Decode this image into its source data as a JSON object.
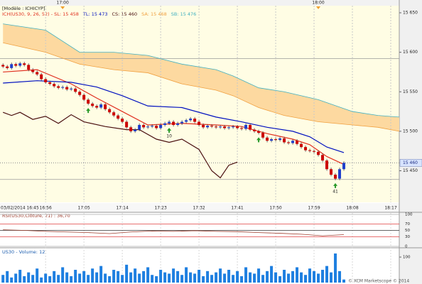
{
  "chart_data": {
    "type": "candlestick",
    "model_label": "[Modèle : ICHICYP]",
    "indicator_title": "ICH(US30, 9, 26, 52) - ",
    "top_markers": [
      {
        "value": 1020,
        "label": "17:00"
      },
      {
        "value": 1080,
        "label": "18:00"
      }
    ],
    "xlim": [
      1005.3,
      1099
    ],
    "xticks": [
      {
        "value": 1005,
        "label": "03/02/2014 16:45"
      },
      {
        "value": 1016,
        "label": "16:56"
      },
      {
        "value": 1025,
        "label": "17:05"
      },
      {
        "value": 1034,
        "label": "17:14"
      },
      {
        "value": 1043,
        "label": "17:23"
      },
      {
        "value": 1052,
        "label": "17:32"
      },
      {
        "value": 1061,
        "label": "17:41"
      },
      {
        "value": 1070,
        "label": "17:50"
      },
      {
        "value": 1079,
        "label": "17:59"
      },
      {
        "value": 1088,
        "label": "18:08"
      },
      {
        "value": 1097,
        "label": "18:17"
      }
    ],
    "ylim": [
      15410,
      15659
    ],
    "yticks": [
      {
        "value": 15650,
        "label": "15 650"
      },
      {
        "value": 15600,
        "label": "15 600"
      },
      {
        "value": 15550,
        "label": "15 550"
      },
      {
        "value": 15500,
        "label": "15 500"
      },
      {
        "value": 15450,
        "label": "15 450"
      }
    ],
    "hlines": [
      15592,
      15439
    ],
    "price_label": {
      "value": 15460,
      "label": "15 460"
    },
    "bull_color": "#1f3fcc",
    "bear_color": "#cc0000",
    "cloud_color": "#fdd9a0",
    "candles": {
      "x": [
        1006,
        1007,
        1008,
        1009,
        1010,
        1011,
        1012,
        1013,
        1014,
        1015,
        1016,
        1017,
        1018,
        1019,
        1020,
        1021,
        1022,
        1023,
        1024,
        1025,
        1026,
        1027,
        1028,
        1029,
        1030,
        1031,
        1032,
        1033,
        1034,
        1035,
        1036,
        1037,
        1038,
        1039,
        1040,
        1041,
        1042,
        1043,
        1044,
        1045,
        1046,
        1047,
        1048,
        1049,
        1050,
        1051,
        1052,
        1053,
        1054,
        1055,
        1056,
        1057,
        1058,
        1059,
        1060,
        1061,
        1062,
        1063,
        1064,
        1065,
        1066,
        1067,
        1068,
        1069,
        1070,
        1071,
        1072,
        1073,
        1074,
        1075,
        1076,
        1077,
        1078,
        1079,
        1080,
        1081,
        1082,
        1083,
        1084,
        1085,
        1086
      ],
      "open": [
        15584,
        15582,
        15580,
        15585,
        15583,
        15586,
        15584,
        15578,
        15575,
        15572,
        15566,
        15562,
        15560,
        15557,
        15555,
        15556,
        15553,
        15554,
        15550,
        15546,
        15540,
        15535,
        15532,
        15530,
        15534,
        15528,
        15524,
        15520,
        15516,
        15512,
        15505,
        15500,
        15502,
        15508,
        15505,
        15506,
        15507,
        15504,
        15508,
        15510,
        15512,
        15508,
        15510,
        15512,
        15514,
        15516,
        15512,
        15508,
        15505,
        15507,
        15506,
        15505,
        15506,
        15504,
        15505,
        15506,
        15504,
        15503,
        15508,
        15502,
        15500,
        15498,
        15492,
        15488,
        15490,
        15489,
        15491,
        15486,
        15485,
        15488,
        15484,
        15480,
        15476,
        15475,
        15474,
        15470,
        15463,
        15452,
        15445,
        15440,
        15452
      ],
      "high": [
        15586,
        15584,
        15587,
        15587,
        15588,
        15588,
        15586,
        15580,
        15577,
        15574,
        15568,
        15564,
        15562,
        15559,
        15558,
        15558,
        15556,
        15556,
        15552,
        15548,
        15542,
        15537,
        15534,
        15536,
        15536,
        15530,
        15526,
        15522,
        15518,
        15514,
        15507,
        15504,
        15510,
        15510,
        15508,
        15509,
        15509,
        15510,
        15512,
        15514,
        15514,
        15512,
        15514,
        15516,
        15518,
        15518,
        15514,
        15510,
        15509,
        15509,
        15508,
        15508,
        15508,
        15507,
        15508,
        15508,
        15506,
        15510,
        15510,
        15504,
        15502,
        15500,
        15494,
        15492,
        15492,
        15493,
        15493,
        15488,
        15490,
        15490,
        15486,
        15482,
        15478,
        15477,
        15476,
        15472,
        15465,
        15454,
        15447,
        15454,
        15462
      ],
      "low": [
        15580,
        15578,
        15578,
        15581,
        15581,
        15582,
        15576,
        15573,
        15570,
        15564,
        15560,
        15558,
        15555,
        15553,
        15553,
        15551,
        15551,
        15548,
        15544,
        15538,
        15533,
        15530,
        15528,
        15528,
        15526,
        15522,
        15518,
        15514,
        15510,
        15503,
        15498,
        15498,
        15500,
        15503,
        15503,
        15504,
        15502,
        15502,
        15506,
        15508,
        15506,
        15506,
        15508,
        15510,
        15512,
        15510,
        15506,
        15503,
        15503,
        15504,
        15503,
        15503,
        15502,
        15502,
        15503,
        15502,
        15501,
        15501,
        15500,
        15498,
        15496,
        15490,
        15486,
        15486,
        15487,
        15487,
        15484,
        15483,
        15483,
        15482,
        15478,
        15474,
        15473,
        15472,
        15468,
        15461,
        15450,
        15443,
        15438,
        15438,
        15450
      ],
      "close": [
        15582,
        15580,
        15585,
        15583,
        15586,
        15584,
        15578,
        15575,
        15572,
        15566,
        15562,
        15560,
        15557,
        15555,
        15556,
        15553,
        15554,
        15550,
        15546,
        15540,
        15535,
        15532,
        15530,
        15534,
        15528,
        15524,
        15520,
        15516,
        15512,
        15505,
        15500,
        15502,
        15508,
        15505,
        15506,
        15507,
        15504,
        15508,
        15510,
        15512,
        15508,
        15510,
        15512,
        15514,
        15516,
        15512,
        15508,
        15505,
        15507,
        15506,
        15505,
        15506,
        15504,
        15505,
        15506,
        15504,
        15503,
        15508,
        15502,
        15500,
        15498,
        15492,
        15488,
        15490,
        15489,
        15491,
        15486,
        15485,
        15488,
        15484,
        15480,
        15476,
        15475,
        15474,
        15470,
        15463,
        15452,
        15445,
        15440,
        15452,
        15460
      ]
    },
    "series": [
      {
        "name": "SL: 15 458",
        "color": "#e03020",
        "x": [
          1006,
          1014,
          1022,
          1028,
          1034,
          1040,
          1048,
          1056,
          1062,
          1068,
          1074,
          1078,
          1082,
          1086
        ],
        "values": [
          15575,
          15578,
          15560,
          15542,
          15525,
          15508,
          15510,
          15508,
          15506,
          15497,
          15490,
          15483,
          15468,
          15458
        ]
      },
      {
        "name": "TL: 15 473",
        "color": "#0010c0",
        "x": [
          1006,
          1014,
          1022,
          1028,
          1034,
          1040,
          1048,
          1056,
          1062,
          1068,
          1074,
          1078,
          1082,
          1086
        ],
        "values": [
          15561,
          15564,
          15562,
          15556,
          15545,
          15532,
          15530,
          15518,
          15512,
          15505,
          15500,
          15493,
          15480,
          15473
        ]
      },
      {
        "name": "CS: 15 460",
        "color": "#4a1010",
        "x": [
          1006,
          1008,
          1010,
          1013,
          1016,
          1019,
          1022,
          1025,
          1030,
          1035,
          1038,
          1042,
          1045,
          1048,
          1052,
          1055,
          1057,
          1059,
          1061
        ],
        "values": [
          15524,
          15520,
          15524,
          15515,
          15519,
          15510,
          15521,
          15512,
          15506,
          15502,
          15502,
          15490,
          15486,
          15490,
          15477,
          15450,
          15441,
          15457,
          15461
        ]
      },
      {
        "name": "SA: 15 468",
        "color": "#f0a040",
        "x": [
          1006,
          1016,
          1024,
          1032,
          1040,
          1048,
          1056,
          1060,
          1066,
          1072,
          1080,
          1088,
          1094,
          1099
        ],
        "values": [
          15612,
          15600,
          15585,
          15578,
          15574,
          15560,
          15552,
          15545,
          15530,
          15520,
          15512,
          15508,
          15505,
          15500
        ]
      },
      {
        "name": "SB: 15 476",
        "color": "#40b0c0",
        "x": [
          1006,
          1016,
          1024,
          1032,
          1040,
          1048,
          1056,
          1060,
          1066,
          1072,
          1080,
          1088,
          1094,
          1099
        ],
        "values": [
          15636,
          15628,
          15600,
          15600,
          15596,
          15585,
          15578,
          15570,
          15555,
          15550,
          15540,
          15525,
          15520,
          15518
        ]
      }
    ],
    "signals": {
      "x": [
        1026,
        1045,
        1066,
        1084
      ],
      "labels": [
        null,
        "10",
        null,
        "41"
      ],
      "color": "#2a9a2a"
    },
    "rsi": {
      "title": "RSI(US30,Clôture, 21) : 36,70",
      "color": "#a04030",
      "ylim": [
        0,
        100
      ],
      "yticks": [
        100,
        70,
        50,
        30,
        0
      ],
      "grid_colors": [
        "#aaaaaa",
        "#e04040",
        "#333333",
        "#e04040",
        "#aaaaaa"
      ],
      "x": [
        1006,
        1011,
        1016,
        1021,
        1026,
        1031,
        1036,
        1041,
        1046,
        1051,
        1056,
        1061,
        1066,
        1071,
        1076,
        1081,
        1086
      ],
      "values": [
        52,
        50,
        47,
        45,
        43,
        40,
        45,
        48,
        47,
        49,
        47,
        46,
        43,
        41,
        38,
        33,
        36.7
      ]
    },
    "volume": {
      "title": "US30 - Volume: 12",
      "color": "#1e7fe0",
      "ylim": [
        0,
        128
      ],
      "yticks": [
        100
      ],
      "values": [
        30,
        45,
        20,
        35,
        50,
        25,
        40,
        30,
        55,
        20,
        35,
        25,
        45,
        30,
        60,
        40,
        25,
        50,
        35,
        45,
        30,
        55,
        40,
        65,
        35,
        25,
        50,
        45,
        30,
        70,
        40,
        55,
        35,
        45,
        60,
        30,
        25,
        50,
        40,
        35,
        55,
        45,
        30,
        60,
        40,
        35,
        50,
        25,
        45,
        30,
        40,
        55,
        35,
        50,
        30,
        45,
        25,
        60,
        40,
        35,
        55,
        30,
        45,
        65,
        40,
        25,
        50,
        35,
        45,
        60,
        40,
        30,
        55,
        45,
        35,
        50,
        65,
        40,
        114,
        45,
        12
      ]
    },
    "footer": "© XCM Marketscope © 2014"
  }
}
